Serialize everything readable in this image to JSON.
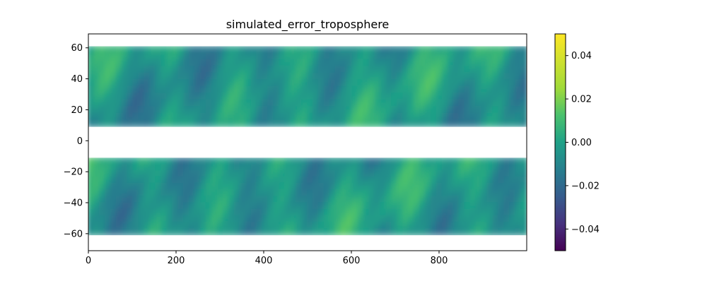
{
  "chart_data": {
    "type": "heatmap",
    "title": "simulated_error_troposphere",
    "xlabel": "",
    "ylabel": "",
    "xlim": [
      0,
      1000
    ],
    "ylim": [
      -71,
      69
    ],
    "x_ticks": [
      0,
      200,
      400,
      600,
      800
    ],
    "x_tick_labels": [
      "0",
      "200",
      "400",
      "600",
      "800"
    ],
    "y_ticks": [
      60,
      40,
      20,
      0,
      -20,
      -40,
      -60
    ],
    "y_tick_labels": [
      "60",
      "40",
      "20",
      "0",
      "−20",
      "−40",
      "−60"
    ],
    "bands": [
      {
        "name": "",
        "y_range": [
          9,
          61
        ]
      },
      {
        "name": "",
        "y_range": [
          -61,
          -11
        ]
      }
    ],
    "colormap": "viridis",
    "colorbar": {
      "vmin": -0.05,
      "vmax": 0.05,
      "ticks": [
        0.04,
        0.02,
        0.0,
        -0.02,
        -0.04
      ],
      "tick_labels": [
        "0.04",
        "0.02",
        "0.00",
        "−0.02",
        "−0.04"
      ]
    },
    "value_range_observed": [
      -0.018,
      0.03
    ],
    "grid": false
  }
}
